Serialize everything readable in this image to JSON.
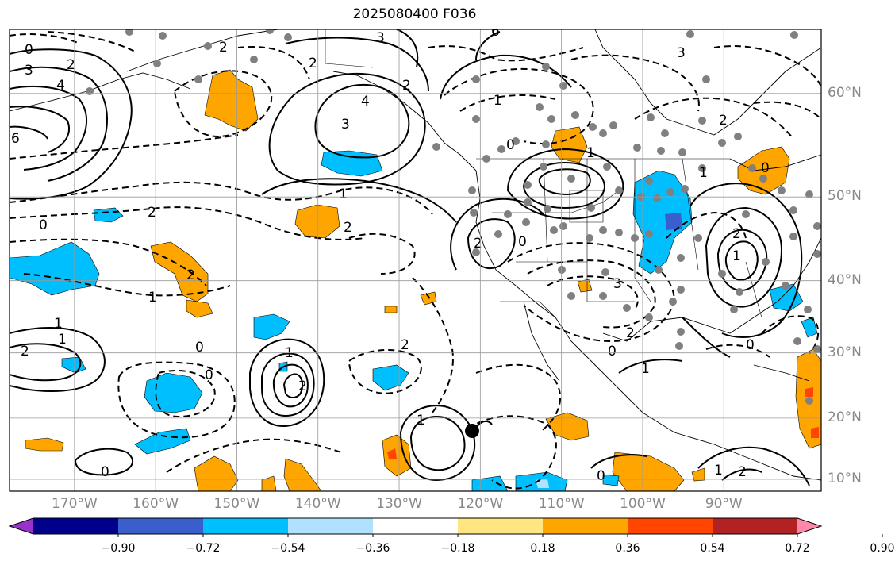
{
  "title": "2025080400 F036",
  "map_data": {
    "type": "weather-map",
    "projection": "mercator",
    "lon_range": [
      -178,
      -78
    ],
    "lat_range": [
      8,
      65
    ],
    "lat_ticks": [
      {
        "value": 60,
        "label": "60°N"
      },
      {
        "value": 50,
        "label": "50°N"
      },
      {
        "value": 40,
        "label": "40°N"
      },
      {
        "value": 30,
        "label": "30°N"
      },
      {
        "value": 20,
        "label": "20°N"
      },
      {
        "value": 10,
        "label": "10°N"
      }
    ],
    "lon_ticks": [
      {
        "value": -170,
        "label": "170°W"
      },
      {
        "value": -160,
        "label": "160°W"
      },
      {
        "value": -150,
        "label": "150°W"
      },
      {
        "value": -140,
        "label": "140°W"
      },
      {
        "value": -130,
        "label": "130°W"
      },
      {
        "value": -120,
        "label": "120°W"
      },
      {
        "value": -110,
        "label": "110°W"
      },
      {
        "value": -100,
        "label": "100°W"
      },
      {
        "value": -90,
        "label": "90°W"
      }
    ],
    "contour_labels": [
      "2",
      "3",
      "6",
      "0",
      "3",
      "4",
      "2",
      "2",
      "4",
      "3",
      "2",
      "1",
      "0",
      "6",
      "0",
      "2",
      "1",
      "2",
      "2",
      "1",
      "2",
      "0",
      "1",
      "1",
      "2",
      "0",
      "2",
      "1",
      "1",
      "0",
      "0",
      "2",
      "1",
      "2",
      "0",
      "1",
      "2",
      "3",
      "1",
      "0",
      "2",
      "1",
      "0",
      "3",
      "2",
      "1",
      "0"
    ],
    "colorbar": {
      "ticks": [
        "−0.90",
        "−0.72",
        "−0.54",
        "−0.36",
        "−0.18",
        "0.18",
        "0.36",
        "0.54",
        "0.72",
        "0.90"
      ],
      "colors": [
        "#9932cc",
        "#00008b",
        "#3a5fcd",
        "#00bfff",
        "#b0e2ff",
        "#ffffff",
        "#ffe680",
        "#ffa500",
        "#ff4500",
        "#b22222",
        "#ff88aa"
      ]
    }
  }
}
